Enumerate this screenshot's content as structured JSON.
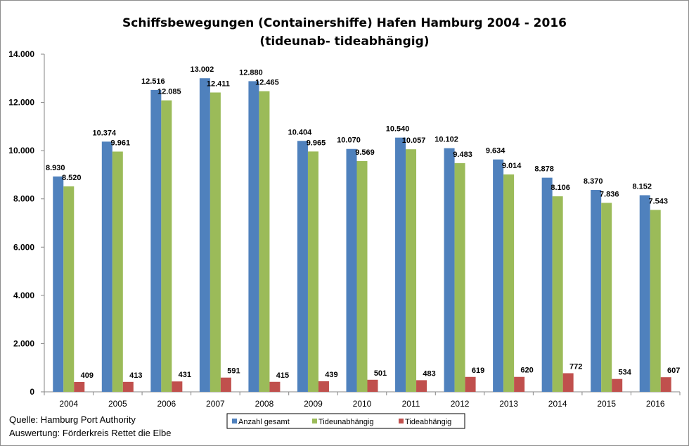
{
  "chart_data": {
    "type": "bar",
    "title": "Schiffsbewegungen (Containershiffe) Hafen Hamburg 2004 - 2016",
    "subtitle": "(tideunab- tideabhängig)",
    "categories": [
      "2004",
      "2005",
      "2006",
      "2007",
      "2008",
      "2009",
      "2010",
      "2011",
      "2012",
      "2013",
      "2014",
      "2015",
      "2016"
    ],
    "series": [
      {
        "name": "Anzahl gesamt",
        "color": "#4f81bd",
        "values": [
          8930,
          10374,
          12516,
          13002,
          12880,
          10404,
          10070,
          10540,
          10102,
          9634,
          8878,
          8370,
          8152
        ],
        "labels": [
          "8.930",
          "10.374",
          "12.516",
          "13.002",
          "12.880",
          "10.404",
          "10.070",
          "10.540",
          "10.102",
          "9.634",
          "8.878",
          "8.370",
          "8.152"
        ]
      },
      {
        "name": "Tideunabhängig",
        "color": "#9bbb59",
        "values": [
          8520,
          9961,
          12085,
          12411,
          12465,
          9965,
          9569,
          10057,
          9483,
          9014,
          8106,
          7836,
          7543
        ],
        "labels": [
          "8.520",
          "9.961",
          "12.085",
          "12.411",
          "12.465",
          "9.965",
          "9.569",
          "10.057",
          "9.483",
          "9.014",
          "8.106",
          "7.836",
          "7.543"
        ]
      },
      {
        "name": "Tideabhängig",
        "color": "#c0504d",
        "values": [
          409,
          413,
          431,
          591,
          415,
          439,
          501,
          483,
          619,
          620,
          772,
          534,
          607
        ],
        "labels": [
          "409",
          "413",
          "431",
          "591",
          "415",
          "439",
          "501",
          "483",
          "619",
          "620",
          "772",
          "534",
          "607"
        ]
      }
    ],
    "ylim": [
      0,
      14000
    ],
    "yticks": [
      0,
      2000,
      4000,
      6000,
      8000,
      10000,
      12000,
      14000
    ],
    "ytick_labels": [
      "0",
      "2.000",
      "4.000",
      "6.000",
      "8.000",
      "10.000",
      "12.000",
      "14.000"
    ],
    "grid": false,
    "legend_position": "bottom"
  },
  "footer": {
    "source": "Quelle: Hamburg Port Authority",
    "analysis": "Auswertung: Förderkreis Rettet die Elbe"
  }
}
